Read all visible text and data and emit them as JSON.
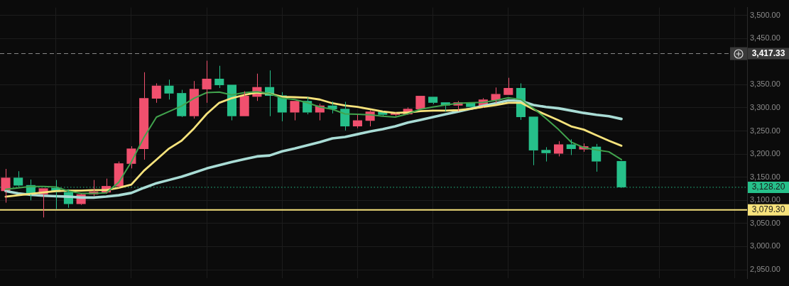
{
  "chart_data": {
    "type": "candlestick",
    "categories": [
      null,
      null,
      null,
      null,
      null,
      null,
      null,
      null,
      null,
      null,
      null,
      null,
      null,
      null,
      null,
      null,
      null,
      null,
      null,
      null,
      null,
      null,
      null,
      null,
      null,
      null,
      null,
      null,
      null,
      null,
      null,
      null,
      null,
      null,
      null,
      null,
      null,
      null,
      null,
      null,
      null,
      null,
      null,
      null,
      null,
      null,
      null,
      null,
      null,
      null
    ],
    "ohlc": [
      [
        3120,
        3168,
        3095,
        3149
      ],
      [
        3149,
        3163,
        3129,
        3132
      ],
      [
        3133,
        3145,
        3100,
        3113
      ],
      [
        3113,
        3126,
        3063,
        3126
      ],
      [
        3127,
        3144,
        3081,
        3118
      ],
      [
        3118,
        3124,
        3084,
        3092
      ],
      [
        3092,
        3114,
        3090,
        3113
      ],
      [
        3113,
        3144,
        3109,
        3119
      ],
      [
        3117,
        3147,
        3115,
        3131
      ],
      [
        3130,
        3184,
        3127,
        3180
      ],
      [
        3179,
        3217,
        3169,
        3212
      ],
      [
        3211,
        3377,
        3188,
        3321
      ],
      [
        3320,
        3353,
        3311,
        3348
      ],
      [
        3348,
        3361,
        3318,
        3331
      ],
      [
        3332,
        3339,
        3280,
        3282
      ],
      [
        3282,
        3358,
        3277,
        3341
      ],
      [
        3340,
        3402,
        3311,
        3363
      ],
      [
        3363,
        3391,
        3343,
        3349
      ],
      [
        3350,
        3350,
        3273,
        3282
      ],
      [
        3282,
        3336,
        3282,
        3326
      ],
      [
        3324,
        3374,
        3315,
        3345
      ],
      [
        3345,
        3381,
        3282,
        3326
      ],
      [
        3327,
        3334,
        3271,
        3290
      ],
      [
        3290,
        3315,
        3273,
        3315
      ],
      [
        3315,
        3323,
        3286,
        3290
      ],
      [
        3290,
        3309,
        3273,
        3305
      ],
      [
        3305,
        3314,
        3288,
        3297
      ],
      [
        3298,
        3313,
        3251,
        3260
      ],
      [
        3260,
        3285,
        3256,
        3273
      ],
      [
        3272,
        3295,
        3260,
        3292
      ],
      [
        3292,
        3293,
        3283,
        3285
      ],
      [
        3285,
        3290,
        3282,
        3288
      ],
      [
        3286,
        3301,
        3285,
        3298
      ],
      [
        3297,
        3326,
        3297,
        3326
      ],
      [
        3324,
        3324,
        3308,
        3311
      ],
      [
        3312,
        3312,
        3292,
        3305
      ],
      [
        3305,
        3315,
        3293,
        3312
      ],
      [
        3312,
        3312,
        3301,
        3302
      ],
      [
        3302,
        3321,
        3300,
        3318
      ],
      [
        3316,
        3344,
        3310,
        3330
      ],
      [
        3328,
        3365,
        3328,
        3343
      ],
      [
        3343,
        3353,
        3274,
        3280
      ],
      [
        3281,
        3281,
        3176,
        3208
      ],
      [
        3209,
        3215,
        3184,
        3202
      ],
      [
        3201,
        3228,
        3195,
        3221
      ],
      [
        3221,
        3232,
        3198,
        3211
      ],
      [
        3210,
        3223,
        3205,
        3217
      ],
      [
        3216,
        3222,
        3162,
        3184
      ],
      null,
      [
        3185,
        3185,
        3127,
        3128.2
      ]
    ],
    "colors": [
      "#f0506e",
      "#26c08a",
      "#26c08a",
      "#f0506e",
      "#26c08a",
      "#26c08a",
      "#f0506e",
      "#f0506e",
      "#f0506e",
      "#f0506e",
      "#f0506e",
      "#f0506e",
      "#f0506e",
      "#26c08a",
      "#26c08a",
      "#f0506e",
      "#f0506e",
      "#26c08a",
      "#26c08a",
      "#f0506e",
      "#f0506e",
      "#26c08a",
      "#26c08a",
      "#f0506e",
      "#26c08a",
      "#f0506e",
      "#26c08a",
      "#26c08a",
      "#f0506e",
      "#f0506e",
      "#26c08a",
      "#f0506e",
      "#f0506e",
      "#f0506e",
      "#26c08a",
      "#26c08a",
      "#f0506e",
      "#26c08a",
      "#f0506e",
      "#f0506e",
      "#f0506e",
      "#26c08a",
      "#26c08a",
      "#26c08a",
      "#f0506e",
      "#26c08a",
      "#f0506e",
      "#26c08a",
      null,
      "#26c08a"
    ],
    "series": [
      {
        "type": "line",
        "color": "#41a34d",
        "values": [
          3124,
          3127,
          3130,
          3130,
          3129,
          3120,
          3115,
          3115,
          3116,
          3139,
          3183,
          3236,
          3280,
          3292,
          3304,
          3321,
          3333,
          3334,
          3328,
          3333,
          3335,
          3331,
          3321,
          3318,
          3311,
          3302,
          3297,
          3287,
          3286,
          3285,
          3282,
          3280,
          3287,
          3297,
          3302,
          3306,
          3310,
          3311,
          3312,
          3316,
          3322,
          3318,
          3299,
          3277,
          3253,
          3226,
          3214,
          3209,
          3205,
          3188
        ]
      },
      {
        "type": "line",
        "color": "#f7e37c",
        "values": [
          3108,
          3111,
          3114,
          3117,
          3120,
          3121,
          3121,
          3122,
          3122,
          3127,
          3134,
          3164,
          3188,
          3212,
          3229,
          3256,
          3287,
          3311,
          3321,
          3328,
          3333,
          3331,
          3324,
          3323,
          3322,
          3318,
          3310,
          3305,
          3302,
          3297,
          3292,
          3289,
          3290,
          3293,
          3294,
          3294,
          3295,
          3298,
          3302,
          3306,
          3311,
          3311,
          3297,
          3285,
          3273,
          3260,
          3253,
          3241,
          3229,
          3218
        ]
      },
      {
        "type": "line",
        "color": "#a9dcd5",
        "values": [
          3120,
          3115,
          3112,
          3110,
          3109,
          3108,
          3106,
          3106,
          3108,
          3111,
          3116,
          3127,
          3137,
          3144,
          3151,
          3160,
          3169,
          3176,
          3183,
          3189,
          3195,
          3197,
          3206,
          3212,
          3219,
          3226,
          3234,
          3237,
          3243,
          3249,
          3254,
          3260,
          3268,
          3274,
          3280,
          3286,
          3292,
          3298,
          3304,
          3310,
          3316,
          3315,
          3306,
          3302,
          3299,
          3294,
          3289,
          3285,
          3282,
          3276
        ]
      }
    ],
    "ylim": [
      2931,
      3517
    ],
    "yticks": [
      {
        "value": 2950,
        "label": "2,950.00"
      },
      {
        "value": 3000,
        "label": "3,000.00"
      },
      {
        "value": 3050,
        "label": "3,050.00"
      },
      {
        "value": 3100,
        "label": "3,100.00"
      },
      {
        "value": 3150,
        "label": "3,150.00"
      },
      {
        "value": 3200,
        "label": "3,200.00"
      },
      {
        "value": 3250,
        "label": "3,250.00"
      },
      {
        "value": 3300,
        "label": "3,300.00"
      },
      {
        "value": 3350,
        "label": "3,350.00"
      },
      {
        "value": 3450,
        "label": "3,450.00"
      },
      {
        "value": 3500,
        "label": "3,500.00"
      }
    ],
    "ref_lines": [
      {
        "axis": "y",
        "value": 3417.33,
        "label": "3,417.33",
        "color": "#8a8a8a",
        "line_style": "dashed"
      },
      {
        "axis": "y",
        "value": 3128.2,
        "label": "3,128.20",
        "color": "#26c08a",
        "line_style": "dotted"
      },
      {
        "axis": "y",
        "value": 3079.3,
        "label": "3,079.30",
        "color": "#f7e37c",
        "line_style": "solid"
      }
    ],
    "grid": true,
    "legend": false,
    "tick_labels": "y",
    "marker": "none",
    "line_style": "solid"
  }
}
